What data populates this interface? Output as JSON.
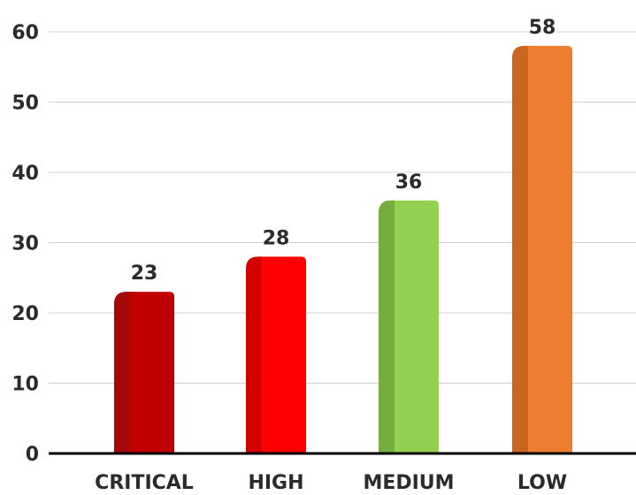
{
  "chart_data": {
    "type": "bar",
    "title": "",
    "xlabel": "",
    "ylabel": "",
    "categories": [
      "CRITICAL",
      "HIGH",
      "MEDIUM",
      "LOW"
    ],
    "values": [
      23,
      28,
      36,
      58
    ],
    "data_labels": [
      "23",
      "28",
      "36",
      "58"
    ],
    "ylim": [
      0,
      60
    ],
    "yticks": [
      0,
      10,
      20,
      30,
      40,
      50,
      60
    ],
    "grid": true,
    "legend": "none",
    "colors": [
      "#c00000",
      "#ff0000",
      "#92d050",
      "#ed7d31"
    ],
    "shade_colors": [
      "#9e0a0a",
      "#cc0000",
      "#70a83a",
      "#c0601f"
    ]
  }
}
